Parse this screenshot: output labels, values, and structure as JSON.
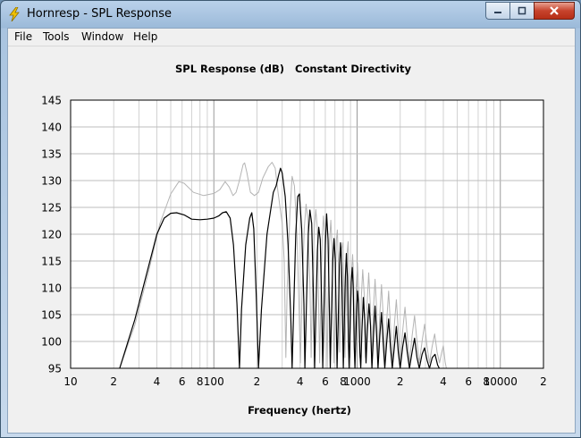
{
  "window": {
    "title": "Hornresp - SPL Response",
    "buttons": {
      "minimize": "minimize",
      "maximize": "maximize",
      "close": "close"
    }
  },
  "menu": {
    "items": [
      "File",
      "Tools",
      "Window",
      "Help"
    ]
  },
  "chart_data": {
    "type": "line",
    "title": "SPL Response (dB)   Constant Directivity",
    "xlabel": "Frequency (hertz)",
    "ylabel": "",
    "x_scale": "log",
    "xlim": [
      10,
      20000
    ],
    "ylim": [
      95,
      145
    ],
    "grid": true,
    "y_ticks": [
      "95",
      "100",
      "105",
      "110",
      "115",
      "120",
      "125",
      "130",
      "135",
      "140",
      "145"
    ],
    "x_tick_labels": [
      {
        "value": 10,
        "label": "10"
      },
      {
        "value": 20,
        "label": "2"
      },
      {
        "value": 40,
        "label": "4"
      },
      {
        "value": 60,
        "label": "6"
      },
      {
        "value": 80,
        "label": "8"
      },
      {
        "value": 100,
        "label": "100"
      },
      {
        "value": 200,
        "label": "2"
      },
      {
        "value": 400,
        "label": "4"
      },
      {
        "value": 600,
        "label": "6"
      },
      {
        "value": 800,
        "label": "8"
      },
      {
        "value": 1000,
        "label": "1000"
      },
      {
        "value": 2000,
        "label": "2"
      },
      {
        "value": 4000,
        "label": "4"
      },
      {
        "value": 6000,
        "label": "6"
      },
      {
        "value": 8000,
        "label": "8"
      },
      {
        "value": 10000,
        "label": "10000"
      },
      {
        "value": 20000,
        "label": "2"
      }
    ],
    "series": [
      {
        "color": "#b4b4b4",
        "points": [
          [
            22,
            95
          ],
          [
            28,
            103
          ],
          [
            35,
            113
          ],
          [
            42,
            122
          ],
          [
            50,
            127.5
          ],
          [
            57,
            129.8
          ],
          [
            62,
            129.5
          ],
          [
            72,
            127.8
          ],
          [
            85,
            127.2
          ],
          [
            100,
            127.6
          ],
          [
            110,
            128.3
          ],
          [
            120,
            129.8
          ],
          [
            128,
            128.8
          ],
          [
            136,
            127.2
          ],
          [
            143,
            127.8
          ],
          [
            150,
            129.8
          ],
          [
            160,
            133
          ],
          [
            164,
            133.3
          ],
          [
            170,
            131.5
          ],
          [
            180,
            127.8
          ],
          [
            192,
            127.2
          ],
          [
            205,
            127.8
          ],
          [
            220,
            130.5
          ],
          [
            240,
            132.6
          ],
          [
            255,
            133.4
          ],
          [
            268,
            132.3
          ],
          [
            280,
            128
          ],
          [
            300,
            122
          ],
          [
            310,
            115
          ],
          [
            318,
            97
          ],
          [
            325,
            110
          ],
          [
            340,
            124
          ],
          [
            352,
            130.8
          ],
          [
            365,
            129
          ],
          [
            380,
            120
          ],
          [
            392,
            108
          ],
          [
            402,
            96
          ],
          [
            412,
            108
          ],
          [
            428,
            121
          ],
          [
            440,
            125.6
          ],
          [
            452,
            123
          ],
          [
            468,
            111
          ],
          [
            478,
            97
          ],
          [
            488,
            111
          ],
          [
            503,
            121
          ],
          [
            515,
            124.6
          ],
          [
            528,
            121
          ],
          [
            540,
            106
          ],
          [
            548,
            96
          ],
          [
            558,
            108
          ],
          [
            570,
            119
          ],
          [
            582,
            123.4
          ],
          [
            596,
            119
          ],
          [
            610,
            104
          ],
          [
            618,
            95
          ],
          [
            628,
            108
          ],
          [
            642,
            118.6
          ],
          [
            655,
            122.6
          ],
          [
            668,
            118
          ],
          [
            682,
            102
          ],
          [
            690,
            96
          ],
          [
            702,
            109
          ],
          [
            716,
            118.8
          ],
          [
            728,
            120.8
          ],
          [
            742,
            114
          ],
          [
            756,
            98
          ],
          [
            768,
            108
          ],
          [
            782,
            117.4
          ],
          [
            796,
            118.4
          ],
          [
            810,
            110
          ],
          [
            822,
            97
          ],
          [
            838,
            108
          ],
          [
            852,
            116.6
          ],
          [
            866,
            118.6
          ],
          [
            880,
            108
          ],
          [
            892,
            97
          ],
          [
            912,
            112
          ],
          [
            930,
            116.2
          ],
          [
            945,
            112
          ],
          [
            962,
            98
          ],
          [
            985,
            110
          ],
          [
            1005,
            114.6
          ],
          [
            1025,
            110
          ],
          [
            1045,
            97
          ],
          [
            1070,
            108
          ],
          [
            1095,
            113.4
          ],
          [
            1120,
            109
          ],
          [
            1145,
            97
          ],
          [
            1175,
            107
          ],
          [
            1205,
            112.8
          ],
          [
            1235,
            107
          ],
          [
            1265,
            96
          ],
          [
            1300,
            106
          ],
          [
            1335,
            111.6
          ],
          [
            1370,
            106
          ],
          [
            1400,
            96
          ],
          [
            1440,
            105
          ],
          [
            1480,
            110.6
          ],
          [
            1520,
            105
          ],
          [
            1560,
            96
          ],
          [
            1610,
            104
          ],
          [
            1660,
            109.4
          ],
          [
            1710,
            103
          ],
          [
            1760,
            96
          ],
          [
            1820,
            103
          ],
          [
            1880,
            107.8
          ],
          [
            1940,
            102
          ],
          [
            2000,
            96
          ],
          [
            2080,
            102
          ],
          [
            2160,
            106.4
          ],
          [
            2240,
            101
          ],
          [
            2320,
            96
          ],
          [
            2420,
            101
          ],
          [
            2520,
            104.8
          ],
          [
            2620,
            100
          ],
          [
            2720,
            96
          ],
          [
            2840,
            100
          ],
          [
            2960,
            103.2
          ],
          [
            3080,
            99
          ],
          [
            3200,
            96
          ],
          [
            3340,
            99
          ],
          [
            3480,
            101.4
          ],
          [
            3620,
            98
          ],
          [
            3760,
            96
          ],
          [
            3900,
            98
          ],
          [
            4000,
            99.2
          ],
          [
            4120,
            96.2
          ],
          [
            4200,
            95
          ]
        ]
      },
      {
        "color": "#000000",
        "points": [
          [
            22,
            95
          ],
          [
            28,
            104
          ],
          [
            35,
            114
          ],
          [
            40,
            120
          ],
          [
            45,
            123
          ],
          [
            50,
            123.9
          ],
          [
            55,
            124
          ],
          [
            62,
            123.6
          ],
          [
            70,
            122.8
          ],
          [
            80,
            122.7
          ],
          [
            90,
            122.8
          ],
          [
            100,
            123
          ],
          [
            108,
            123.4
          ],
          [
            115,
            124
          ],
          [
            122,
            124.2
          ],
          [
            130,
            123
          ],
          [
            137,
            118
          ],
          [
            145,
            107
          ],
          [
            151,
            95
          ],
          [
            156,
            106
          ],
          [
            167,
            118
          ],
          [
            178,
            123
          ],
          [
            184,
            124
          ],
          [
            190,
            121
          ],
          [
            198,
            108
          ],
          [
            205,
            95
          ],
          [
            215,
            106
          ],
          [
            235,
            120
          ],
          [
            260,
            127.8
          ],
          [
            272,
            129
          ],
          [
            283,
            131
          ],
          [
            292,
            132.3
          ],
          [
            300,
            131.4
          ],
          [
            315,
            127
          ],
          [
            330,
            118
          ],
          [
            345,
            104
          ],
          [
            352,
            95
          ],
          [
            360,
            105
          ],
          [
            373,
            120
          ],
          [
            385,
            127
          ],
          [
            396,
            127.5
          ],
          [
            410,
            121
          ],
          [
            425,
            107
          ],
          [
            432,
            95
          ],
          [
            442,
            106
          ],
          [
            456,
            120
          ],
          [
            468,
            124.5
          ],
          [
            482,
            122
          ],
          [
            496,
            108
          ],
          [
            505,
            95
          ],
          [
            516,
            106
          ],
          [
            528,
            117
          ],
          [
            540,
            121.3
          ],
          [
            553,
            119
          ],
          [
            568,
            105
          ],
          [
            576,
            95
          ],
          [
            586,
            105
          ],
          [
            600,
            118
          ],
          [
            613,
            123.8
          ],
          [
            627,
            119
          ],
          [
            642,
            104
          ],
          [
            650,
            95
          ],
          [
            662,
            105
          ],
          [
            676,
            115
          ],
          [
            690,
            119.2
          ],
          [
            704,
            115
          ],
          [
            718,
            102
          ],
          [
            725,
            95
          ],
          [
            738,
            104
          ],
          [
            752,
            114
          ],
          [
            766,
            118.4
          ],
          [
            780,
            114
          ],
          [
            794,
            101
          ],
          [
            802,
            95
          ],
          [
            815,
            104
          ],
          [
            828,
            112
          ],
          [
            842,
            116.4
          ],
          [
            856,
            112
          ],
          [
            870,
            100
          ],
          [
            880,
            95
          ],
          [
            895,
            104
          ],
          [
            910,
            111
          ],
          [
            925,
            113.8
          ],
          [
            940,
            110
          ],
          [
            955,
            99
          ],
          [
            966,
            95
          ],
          [
            985,
            103
          ],
          [
            1005,
            109.4
          ],
          [
            1025,
            107
          ],
          [
            1045,
            98
          ],
          [
            1060,
            95
          ],
          [
            1080,
            102
          ],
          [
            1105,
            108.2
          ],
          [
            1130,
            104
          ],
          [
            1155,
            96
          ],
          [
            1180,
            102
          ],
          [
            1210,
            107
          ],
          [
            1240,
            103
          ],
          [
            1270,
            95
          ],
          [
            1300,
            101
          ],
          [
            1335,
            106.6
          ],
          [
            1370,
            101
          ],
          [
            1400,
            95
          ],
          [
            1440,
            101
          ],
          [
            1480,
            105.4
          ],
          [
            1520,
            100
          ],
          [
            1560,
            95
          ],
          [
            1610,
            100
          ],
          [
            1660,
            104.2
          ],
          [
            1710,
            99
          ],
          [
            1760,
            95
          ],
          [
            1820,
            99
          ],
          [
            1880,
            102.8
          ],
          [
            1940,
            98
          ],
          [
            2000,
            95
          ],
          [
            2080,
            99
          ],
          [
            2160,
            101.6
          ],
          [
            2240,
            98
          ],
          [
            2320,
            95
          ],
          [
            2420,
            98
          ],
          [
            2520,
            100.6
          ],
          [
            2620,
            97
          ],
          [
            2720,
            95
          ],
          [
            2840,
            97.6
          ],
          [
            2960,
            98.8
          ],
          [
            3080,
            96.5
          ],
          [
            3200,
            95
          ],
          [
            3350,
            97
          ],
          [
            3500,
            97.6
          ],
          [
            3650,
            95.6
          ],
          [
            3750,
            95
          ]
        ]
      }
    ]
  }
}
